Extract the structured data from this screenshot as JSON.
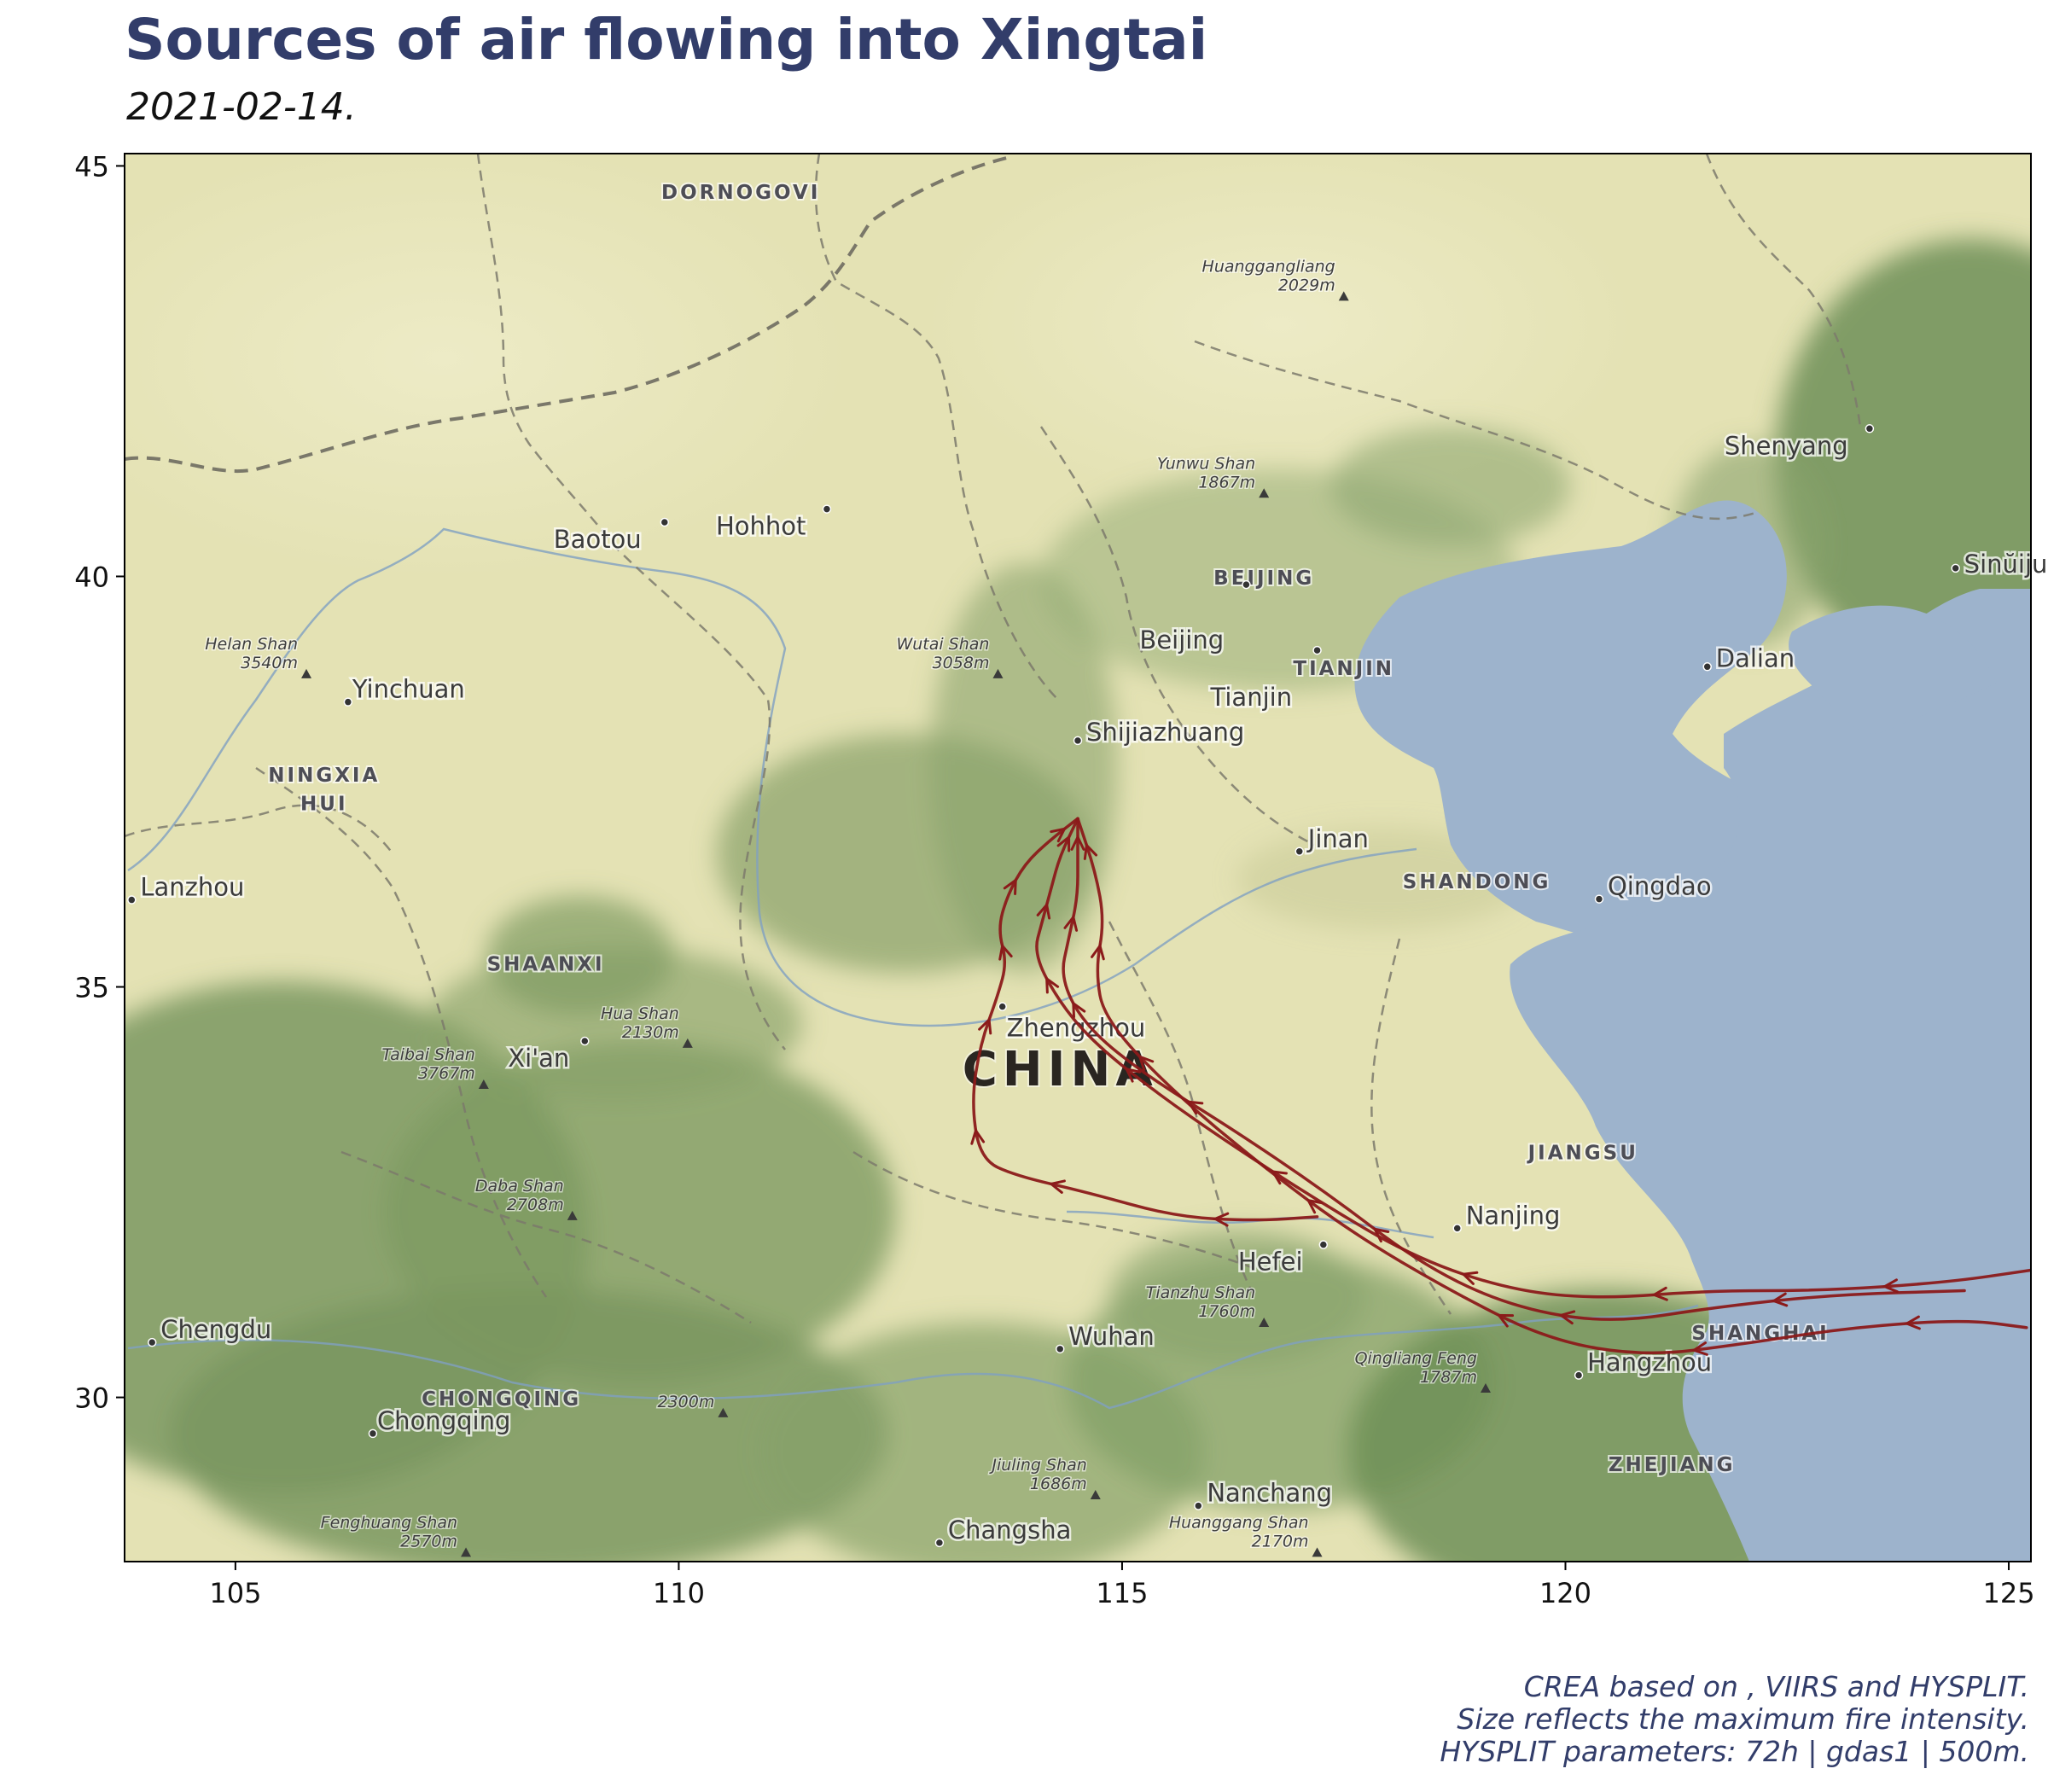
{
  "title": "Sources of air flowing into Xingtai",
  "subtitle": "2021-02-14.",
  "caption": [
    "CREA based on , VIIRS and HYSPLIT.",
    "Size reflects the maximum fire intensity.",
    "HYSPLIT parameters: 72h | gdas1 | 500m."
  ],
  "colors": {
    "title": "#323d6a",
    "trajectory": "#8b1a1a",
    "land": "#e4e2b4",
    "sea": "#9db3cc",
    "forest": "#7d9a63"
  },
  "map": {
    "lon_range": [
      103.75,
      125.25
    ],
    "lat_range": [
      28.0,
      45.15
    ],
    "x_ticks": [
      105,
      110,
      115,
      120,
      125
    ],
    "y_ticks": [
      30,
      35,
      40,
      45
    ],
    "country_label": {
      "text": "CHINA",
      "lon": 114.3,
      "lat": 33.8
    },
    "cities": [
      {
        "name": "Shenyang",
        "lon": 123.43,
        "lat": 41.8,
        "dx": -170,
        "dy": 30
      },
      {
        "name": "Sinŭiju",
        "lon": 124.4,
        "lat": 40.1,
        "dx": 10,
        "dy": 5
      },
      {
        "name": "Dalian",
        "lon": 121.6,
        "lat": 38.9,
        "dx": 10,
        "dy": 0
      },
      {
        "name": "Beijing",
        "lon": 116.4,
        "lat": 39.9,
        "dx": -125,
        "dy": 75
      },
      {
        "name": "Tianjin",
        "lon": 117.2,
        "lat": 39.1,
        "dx": -125,
        "dy": 65
      },
      {
        "name": "Shijiazhuang",
        "lon": 114.5,
        "lat": 38.0,
        "dx": 10,
        "dy": 0
      },
      {
        "name": "Jinan",
        "lon": 117.0,
        "lat": 36.65,
        "dx": 10,
        "dy": -5
      },
      {
        "name": "Qingdao",
        "lon": 120.38,
        "lat": 36.07,
        "dx": 10,
        "dy": -5
      },
      {
        "name": "Baotou",
        "lon": 109.84,
        "lat": 40.66,
        "dx": -130,
        "dy": 30
      },
      {
        "name": "Hohhot",
        "lon": 111.67,
        "lat": 40.82,
        "dx": -130,
        "dy": 30
      },
      {
        "name": "Yinchuan",
        "lon": 106.27,
        "lat": 38.47,
        "dx": 5,
        "dy": -5
      },
      {
        "name": "Lanzhou",
        "lon": 103.83,
        "lat": 36.06,
        "dx": 10,
        "dy": -5
      },
      {
        "name": "Zhengzhou",
        "lon": 113.65,
        "lat": 34.76,
        "dx": 5,
        "dy": 35
      },
      {
        "name": "Xi'an",
        "lon": 108.94,
        "lat": 34.34,
        "dx": -90,
        "dy": 30
      },
      {
        "name": "Nanjing",
        "lon": 118.78,
        "lat": 32.06,
        "dx": 10,
        "dy": -5
      },
      {
        "name": "Hefei",
        "lon": 117.27,
        "lat": 31.86,
        "dx": -100,
        "dy": 30
      },
      {
        "name": "Wuhan",
        "lon": 114.3,
        "lat": 30.59,
        "dx": 10,
        "dy": -5
      },
      {
        "name": "Hangzhou",
        "lon": 120.15,
        "lat": 30.27,
        "dx": 10,
        "dy": -5
      },
      {
        "name": "Chengdu",
        "lon": 104.06,
        "lat": 30.67,
        "dx": 10,
        "dy": -5
      },
      {
        "name": "Chongqing",
        "lon": 106.55,
        "lat": 29.56,
        "dx": 5,
        "dy": -5
      },
      {
        "name": "Nanchang",
        "lon": 115.86,
        "lat": 28.68,
        "dx": 10,
        "dy": -5
      },
      {
        "name": "Changsha",
        "lon": 112.94,
        "lat": 28.23,
        "dx": 10,
        "dy": -5
      }
    ],
    "regions": [
      {
        "name": "DORNOGOVI",
        "lon": 110.7,
        "lat": 44.6
      },
      {
        "name": "BEIJING",
        "lon": 116.6,
        "lat": 39.9
      },
      {
        "name": "TIANJIN",
        "lon": 117.5,
        "lat": 38.8
      },
      {
        "name": "NINGXIA",
        "lon": 106.0,
        "lat": 37.5
      },
      {
        "name": "HUI",
        "lon": 106.0,
        "lat": 37.15
      },
      {
        "name": "SHAANXI",
        "lon": 108.5,
        "lat": 35.2
      },
      {
        "name": "SHANDONG",
        "lon": 119.0,
        "lat": 36.2
      },
      {
        "name": "JIANGSU",
        "lon": 120.2,
        "lat": 32.9
      },
      {
        "name": "SHANGHAI",
        "lon": 122.2,
        "lat": 30.7
      },
      {
        "name": "CHONGQING",
        "lon": 108.0,
        "lat": 29.9
      },
      {
        "name": "ZHEJIANG",
        "lon": 121.2,
        "lat": 29.1
      }
    ],
    "mountains": [
      {
        "name": "Huanggangliang",
        "elev": "2029m",
        "lon": 117.5,
        "lat": 43.4
      },
      {
        "name": "Yunwu Shan",
        "elev": "1867m",
        "lon": 116.6,
        "lat": 41.0
      },
      {
        "name": "Wutai Shan",
        "elev": "3058m",
        "lon": 113.6,
        "lat": 38.8
      },
      {
        "name": "Helan Shan",
        "elev": "3540m",
        "lon": 105.8,
        "lat": 38.8
      },
      {
        "name": "Hua Shan",
        "elev": "2130m",
        "lon": 110.1,
        "lat": 34.3
      },
      {
        "name": "Taibai Shan",
        "elev": "3767m",
        "lon": 107.8,
        "lat": 33.8
      },
      {
        "name": "Daba Shan",
        "elev": "2708m",
        "lon": 108.8,
        "lat": 32.2
      },
      {
        "name": "Tianzhu Shan",
        "elev": "1760m",
        "lon": 116.6,
        "lat": 30.9
      },
      {
        "name": "Qingliang Feng",
        "elev": "1787m",
        "lon": 119.1,
        "lat": 30.1
      },
      {
        "name": "",
        "elev": "2300m",
        "lon": 110.5,
        "lat": 29.8
      },
      {
        "name": "Jiuling Shan",
        "elev": "1686m",
        "lon": 114.7,
        "lat": 28.8
      },
      {
        "name": "Fenghuang Shan",
        "elev": "2570m",
        "lon": 107.6,
        "lat": 28.1
      },
      {
        "name": "Huanggang Shan",
        "elev": "2170m",
        "lon": 117.2,
        "lat": 28.1
      }
    ],
    "trajectories": [
      {
        "name": "",
        "points": [
          [
            114.5,
            37.05
          ],
          [
            114.2,
            36.8
          ],
          [
            113.9,
            36.5
          ],
          [
            113.7,
            36.1
          ],
          [
            113.6,
            35.7
          ],
          [
            113.7,
            35.3
          ],
          [
            113.6,
            34.9
          ],
          [
            113.4,
            34.3
          ],
          [
            113.3,
            33.6
          ],
          [
            113.4,
            32.9
          ],
          [
            113.8,
            32.7
          ],
          [
            114.6,
            32.5
          ],
          [
            115.6,
            32.2
          ],
          [
            116.5,
            32.15
          ],
          [
            117.2,
            32.2
          ]
        ]
      },
      {
        "name": "",
        "points": [
          [
            114.5,
            37.05
          ],
          [
            114.3,
            36.6
          ],
          [
            114.2,
            36.2
          ],
          [
            114.1,
            35.8
          ],
          [
            114.0,
            35.4
          ],
          [
            114.3,
            34.8
          ],
          [
            114.7,
            34.3
          ],
          [
            115.4,
            33.7
          ],
          [
            116.2,
            33.1
          ],
          [
            117.2,
            32.4
          ],
          [
            118.3,
            31.7
          ],
          [
            119.4,
            31.3
          ],
          [
            120.4,
            31.2
          ],
          [
            121.6,
            31.3
          ],
          [
            122.9,
            31.3
          ],
          [
            124.3,
            31.4
          ],
          [
            125.25,
            31.55
          ]
        ]
      },
      {
        "name": "",
        "points": [
          [
            114.5,
            37.05
          ],
          [
            114.5,
            36.6
          ],
          [
            114.5,
            36.1
          ],
          [
            114.4,
            35.6
          ],
          [
            114.3,
            35.1
          ],
          [
            114.6,
            34.5
          ],
          [
            115.3,
            33.9
          ],
          [
            116.2,
            33.3
          ],
          [
            117.3,
            32.5
          ],
          [
            118.4,
            31.6
          ],
          [
            119.4,
            31.1
          ],
          [
            120.5,
            30.9
          ],
          [
            121.7,
            31.1
          ],
          [
            123.0,
            31.25
          ],
          [
            124.5,
            31.3
          ]
        ]
      },
      {
        "name": "",
        "points": [
          [
            114.5,
            37.05
          ],
          [
            114.7,
            36.4
          ],
          [
            114.8,
            35.8
          ],
          [
            114.7,
            35.2
          ],
          [
            114.8,
            34.6
          ],
          [
            115.6,
            33.7
          ],
          [
            116.6,
            32.8
          ],
          [
            117.6,
            32.0
          ],
          [
            118.7,
            31.3
          ],
          [
            119.8,
            30.7
          ],
          [
            120.9,
            30.5
          ],
          [
            122.0,
            30.65
          ],
          [
            123.2,
            30.85
          ],
          [
            124.5,
            30.95
          ],
          [
            125.2,
            30.85
          ]
        ]
      }
    ]
  }
}
